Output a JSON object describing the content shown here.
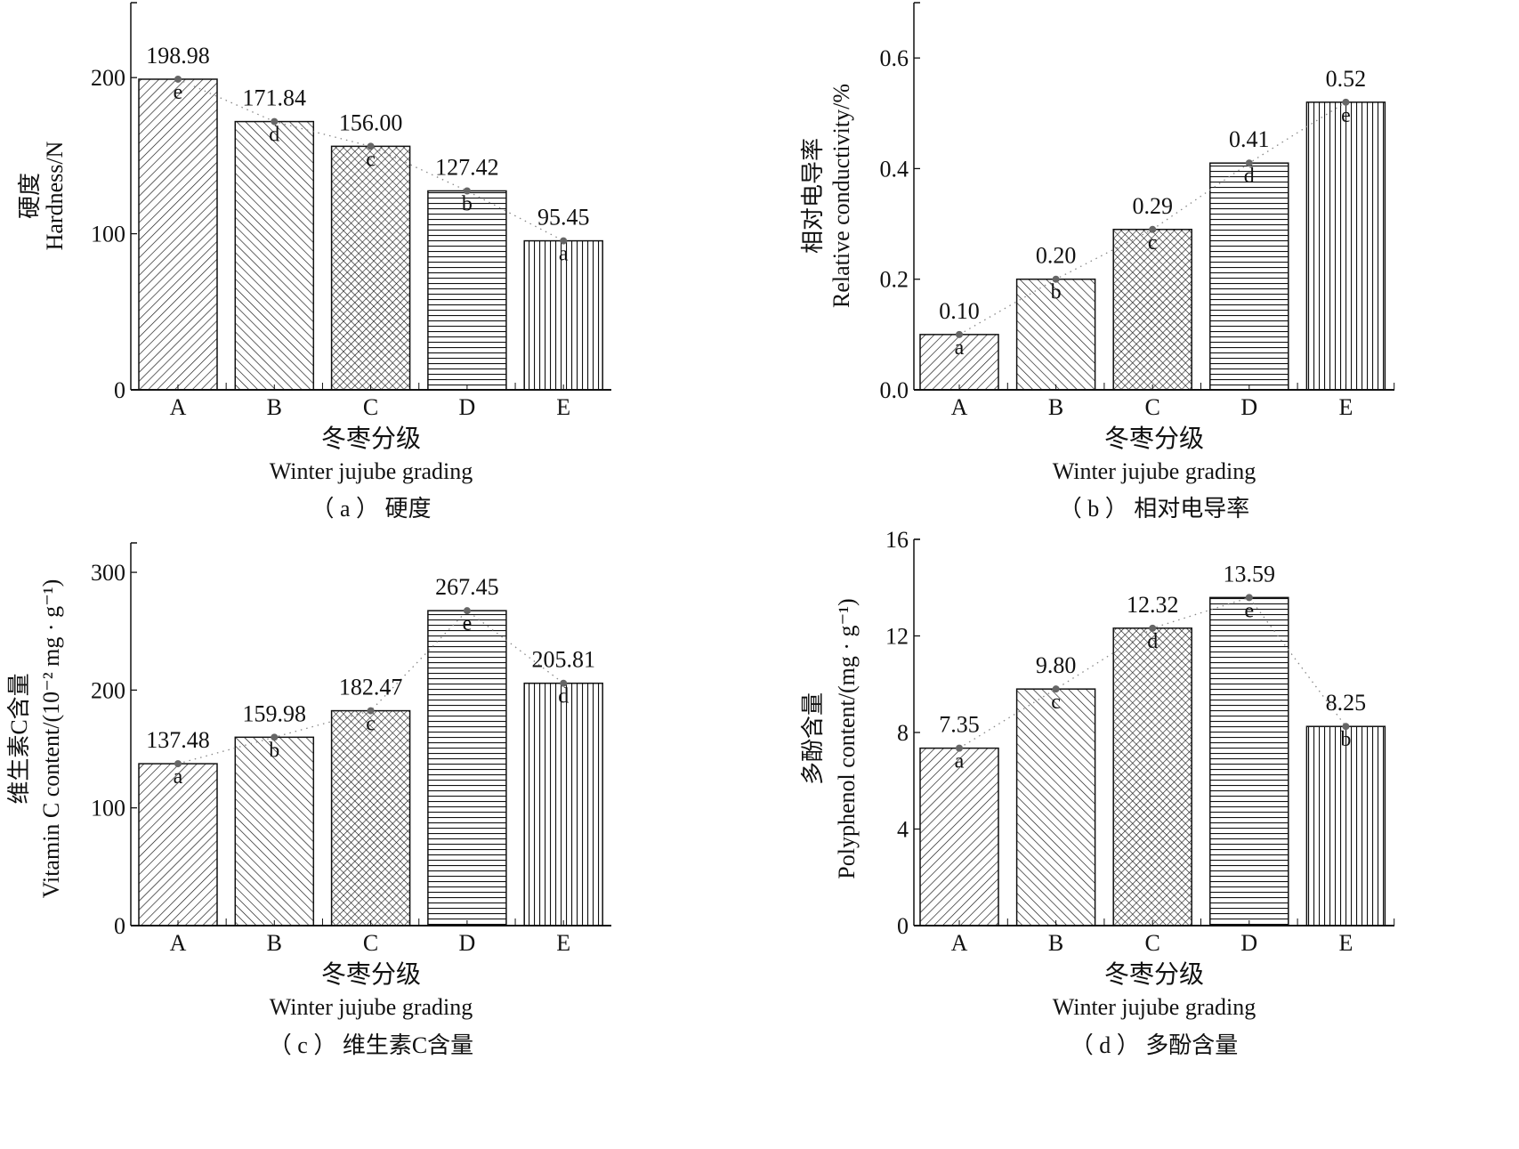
{
  "figure": {
    "x_title_cn": "冬枣分级",
    "x_title_en": "Winter jujube grading"
  },
  "chart_data": [
    {
      "id": "a",
      "type": "bar",
      "caption": "（ a ）  硬度",
      "title": "",
      "ylabel_cn": "硬度",
      "ylabel_en": "Hardness/N",
      "xlabel_cn": "冬枣分级",
      "xlabel_en": "Winter jujube grading",
      "categories": [
        "A",
        "B",
        "C",
        "D",
        "E"
      ],
      "values": [
        198.98,
        171.84,
        156.0,
        127.42,
        95.45
      ],
      "value_labels": [
        "198.98",
        "171.84",
        "156.00",
        "127.42",
        "95.45"
      ],
      "significance_letters": [
        "e",
        "d",
        "c",
        "b",
        "a"
      ],
      "yticks": [
        0,
        100,
        200
      ],
      "ytick_labels": [
        "0",
        "100",
        "200"
      ],
      "ylim": [
        0,
        248
      ],
      "trend_line": "dotted",
      "grid": false
    },
    {
      "id": "b",
      "type": "bar",
      "caption": "（ b ）  相对电导率",
      "title": "",
      "ylabel_cn": "相对电导率",
      "ylabel_en": "Relative conductivity/%",
      "xlabel_cn": "冬枣分级",
      "xlabel_en": "Winter jujube grading",
      "categories": [
        "A",
        "B",
        "C",
        "D",
        "E"
      ],
      "values": [
        0.1,
        0.2,
        0.29,
        0.41,
        0.52
      ],
      "value_labels": [
        "0.10",
        "0.20",
        "0.29",
        "0.41",
        "0.52"
      ],
      "significance_letters": [
        "a",
        "b",
        "c",
        "d",
        "e"
      ],
      "yticks": [
        0.0,
        0.2,
        0.4,
        0.6
      ],
      "ytick_labels": [
        "0.0",
        "0.2",
        "0.4",
        "0.6"
      ],
      "ylim": [
        0,
        0.7
      ],
      "trend_line": "dotted",
      "grid": false
    },
    {
      "id": "c",
      "type": "bar",
      "caption": "（ c ）  维生素C含量",
      "title": "",
      "ylabel_cn": "维生素C含量",
      "ylabel_en": "Vitamin C content/(10⁻² mg · g⁻¹)",
      "xlabel_cn": "冬枣分级",
      "xlabel_en": "Winter jujube grading",
      "categories": [
        "A",
        "B",
        "C",
        "D",
        "E"
      ],
      "values": [
        137.48,
        159.98,
        182.47,
        267.45,
        205.81
      ],
      "value_labels": [
        "137.48",
        "159.98",
        "182.47",
        "267.45",
        "205.81"
      ],
      "significance_letters": [
        "a",
        "b",
        "c",
        "e",
        "d"
      ],
      "yticks": [
        0,
        100,
        200,
        300
      ],
      "ytick_labels": [
        "0",
        "100",
        "200",
        "300"
      ],
      "ylim": [
        0,
        325
      ],
      "trend_line": "dotted",
      "grid": false
    },
    {
      "id": "d",
      "type": "bar",
      "caption": "（ d ）  多酚含量",
      "title": "",
      "ylabel_cn": "多酚含量",
      "ylabel_en": "Polyphenol content/(mg · g⁻¹)",
      "xlabel_cn": "冬枣分级",
      "xlabel_en": "Winter jujube grading",
      "categories": [
        "A",
        "B",
        "C",
        "D",
        "E"
      ],
      "values": [
        7.35,
        9.8,
        12.32,
        13.59,
        8.25
      ],
      "value_labels": [
        "7.35",
        "9.80",
        "12.32",
        "13.59",
        "8.25"
      ],
      "significance_letters": [
        "a",
        "c",
        "d",
        "e",
        "b"
      ],
      "yticks": [
        0,
        4,
        8,
        12,
        16
      ],
      "ytick_labels": [
        "0",
        "4",
        "8",
        "12",
        "16"
      ],
      "ylim": [
        0,
        16
      ],
      "trend_line": "dotted",
      "grid": false
    }
  ],
  "bar_patterns": [
    "diagonal-up",
    "diagonal-down",
    "crosshatch",
    "horizontal",
    "vertical"
  ],
  "colors": {
    "ink": "#111111",
    "marker": "#666666",
    "trend": "#888888"
  }
}
